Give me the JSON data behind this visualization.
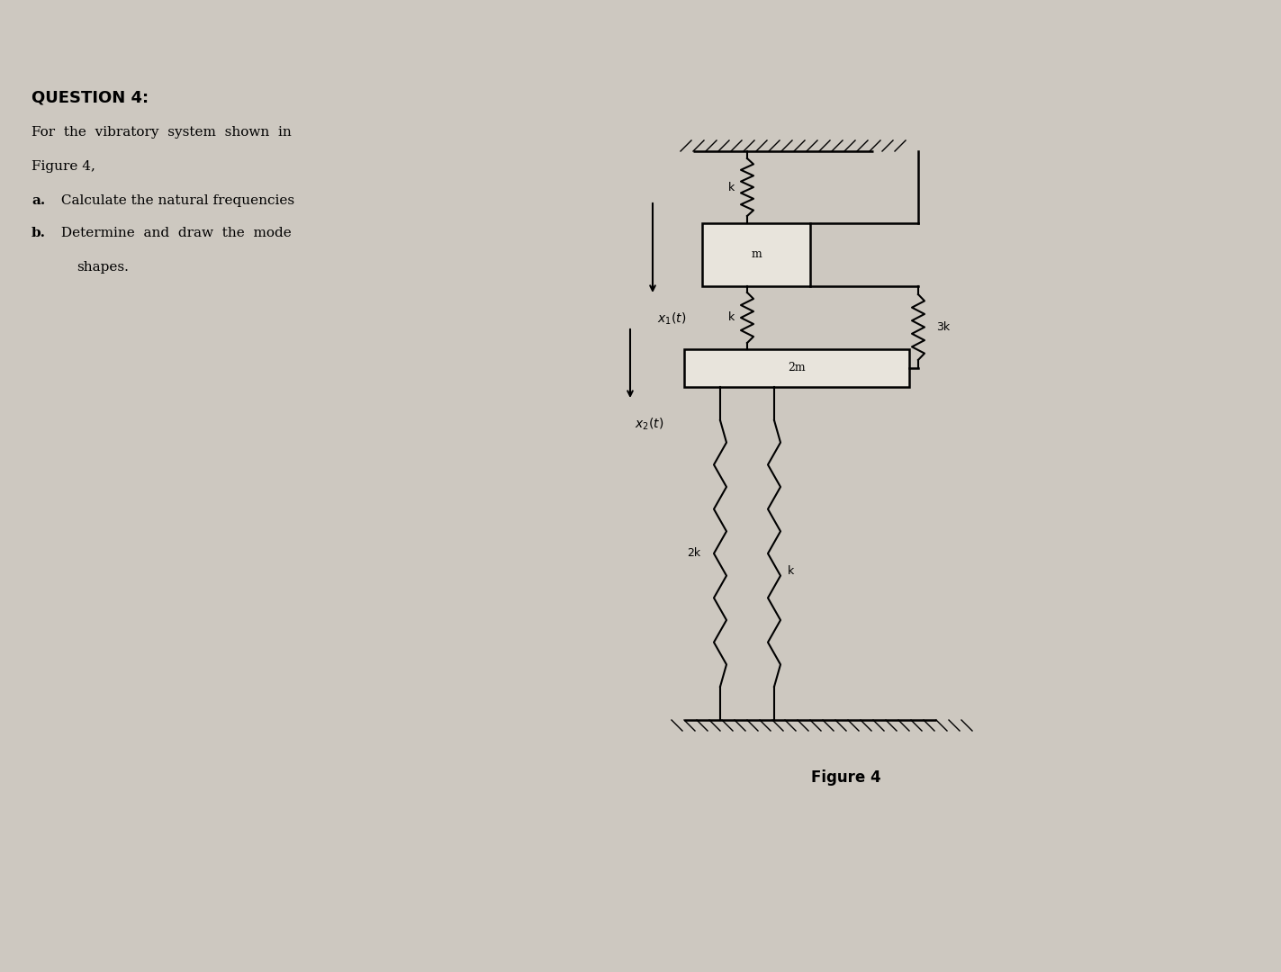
{
  "bg_color": "#cdc8c0",
  "fig_bg": "#d0cbc3",
  "title_text": "QUESTION 4:",
  "q_line1": "For  the  vibratory  system  shown  in",
  "q_line2": "Figure 4,",
  "q_line3_bold": "a.",
  "q_line3_rest": "  Calculate the natural frequencies",
  "q_line4_bold": "b.",
  "q_line4_rest": "  Determine  and  draw  the  mode",
  "q_line5": "     shapes.",
  "figure_caption": "Figure 4",
  "mass1_label": "m",
  "mass2_label": "2m",
  "spring_k_top": "k",
  "spring_k_mid": "k",
  "spring_2k": "2k",
  "spring_k_bot": "k",
  "spring_3k": "3k",
  "disp1_label": "x",
  "disp1_sub": "1",
  "disp2_label": "x",
  "disp2_sub": "2"
}
